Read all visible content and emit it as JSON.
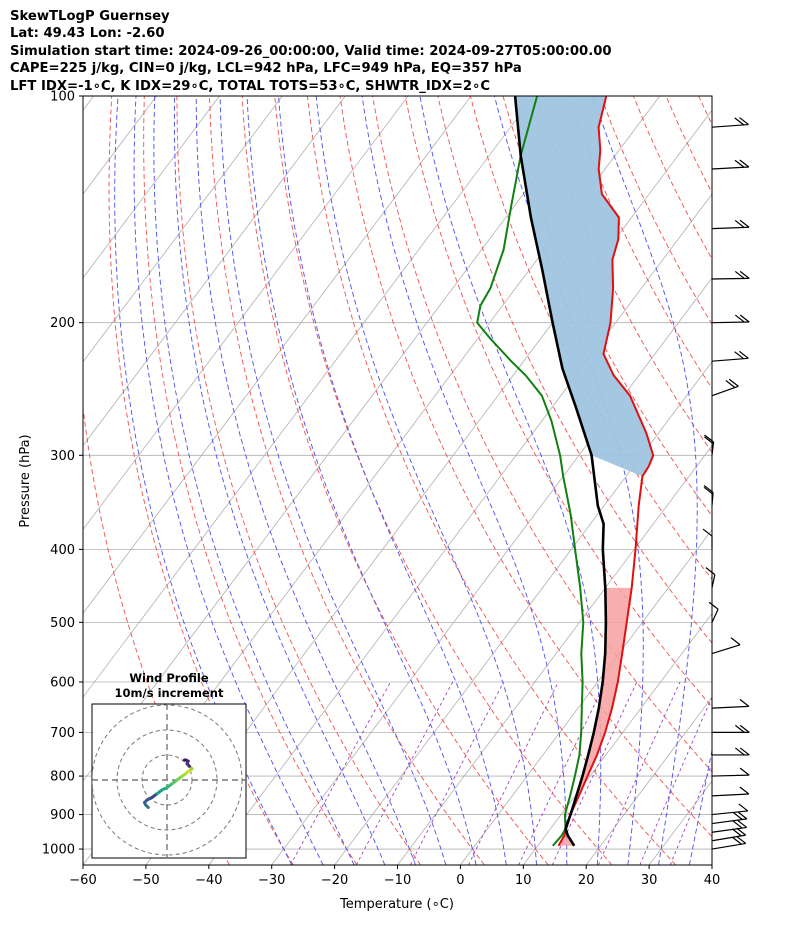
{
  "header": {
    "line1": "SkewTLogP Guernsey",
    "line2": "Lat: 49.43   Lon: -2.60",
    "line3": "Simulation start time: 2024-09-26_00:00:00, Valid time: 2024-09-27T05:00:00.00",
    "line4": "CAPE=225 j/kg, CIN=0 j/kg, LCL=942 hPa, LFC=949 hPa, EQ=357 hPa",
    "line5": "LFT IDX=-1∘C, K IDX=29∘C, TOTAL TOTS=53∘C, SHWTR_IDX=2∘C"
  },
  "hodograph": {
    "title": "Wind Profile",
    "subtitle": "10m/s increment"
  },
  "chart_data": {
    "type": "skewt",
    "xlabel": "Temperature (∘C)",
    "ylabel": "Pressure (hPa)",
    "xlim": [
      -60,
      40
    ],
    "ylim": [
      1050,
      100
    ],
    "x_ticks": [
      "−60",
      "−50",
      "−40",
      "−30",
      "−20",
      "−10",
      "0",
      "10",
      "20",
      "30",
      "40"
    ],
    "x_tick_values": [
      -60,
      -50,
      -40,
      -30,
      -20,
      -10,
      0,
      10,
      20,
      30,
      40
    ],
    "y_ticks": [
      "100",
      "200",
      "300",
      "400",
      "500",
      "600",
      "700",
      "800",
      "900",
      "1000"
    ],
    "y_tick_values": [
      100,
      200,
      300,
      400,
      500,
      600,
      700,
      800,
      900,
      1000
    ],
    "temperature_profile": [
      [
        13.3,
        990
      ],
      [
        13.0,
        960
      ],
      [
        12.5,
        940
      ],
      [
        11.5,
        900
      ],
      [
        10.6,
        850
      ],
      [
        9.6,
        800
      ],
      [
        8.6,
        750
      ],
      [
        7.2,
        700
      ],
      [
        5.4,
        650
      ],
      [
        3.2,
        600
      ],
      [
        0.5,
        550
      ],
      [
        -2.5,
        500
      ],
      [
        -5.8,
        450
      ],
      [
        -9.8,
        400
      ],
      [
        -14.5,
        350
      ],
      [
        -17.4,
        320
      ],
      [
        -17.6,
        310
      ],
      [
        -18.2,
        300
      ],
      [
        -22.0,
        280
      ],
      [
        -29.0,
        250
      ],
      [
        -34.0,
        235
      ],
      [
        -38.2,
        220
      ],
      [
        -40.8,
        200
      ],
      [
        -44.5,
        180
      ],
      [
        -48.0,
        165
      ],
      [
        -49.5,
        155
      ],
      [
        -52.0,
        145
      ],
      [
        -57.5,
        135
      ],
      [
        -61.0,
        125
      ],
      [
        -63.0,
        118
      ],
      [
        -66.0,
        110
      ],
      [
        -68.5,
        100
      ]
    ],
    "dewpoint_profile": [
      [
        12.4,
        990
      ],
      [
        12.6,
        960
      ],
      [
        12.4,
        940
      ],
      [
        10.6,
        900
      ],
      [
        9.2,
        850
      ],
      [
        7.6,
        800
      ],
      [
        5.8,
        750
      ],
      [
        3.4,
        700
      ],
      [
        0.6,
        650
      ],
      [
        -2.4,
        600
      ],
      [
        -6.0,
        550
      ],
      [
        -9.4,
        500
      ],
      [
        -14.0,
        450
      ],
      [
        -19.4,
        400
      ],
      [
        -24.2,
        360
      ],
      [
        -27.0,
        340
      ],
      [
        -30.0,
        320
      ],
      [
        -33.0,
        300
      ],
      [
        -38.5,
        270
      ],
      [
        -43.0,
        250
      ],
      [
        -48.0,
        235
      ],
      [
        -52.0,
        225
      ],
      [
        -58.0,
        210
      ],
      [
        -62.0,
        200
      ],
      [
        -63.5,
        190
      ],
      [
        -64.0,
        180
      ],
      [
        -66.5,
        160
      ],
      [
        -70.5,
        140
      ],
      [
        -75.0,
        120
      ],
      [
        -79.5,
        100
      ]
    ],
    "parcel_profile": [
      [
        15.8,
        990
      ],
      [
        13.6,
        960
      ],
      [
        12.4,
        940
      ],
      [
        11.5,
        900
      ],
      [
        10.2,
        850
      ],
      [
        8.8,
        800
      ],
      [
        7.2,
        750
      ],
      [
        5.4,
        700
      ],
      [
        3.3,
        650
      ],
      [
        0.8,
        600
      ],
      [
        -2.2,
        550
      ],
      [
        -5.8,
        500
      ],
      [
        -10.0,
        450
      ],
      [
        -15.0,
        400
      ],
      [
        -17.9,
        370
      ],
      [
        -21.0,
        350
      ],
      [
        -28.0,
        300
      ],
      [
        -36.0,
        260
      ],
      [
        -43.0,
        230
      ],
      [
        -50.0,
        200
      ],
      [
        -58.0,
        170
      ],
      [
        -66.0,
        145
      ],
      [
        -75.0,
        120
      ],
      [
        -83.0,
        100
      ]
    ],
    "cape_shading": "positive area between parcel and environment",
    "wind_barbs": [
      {
        "pressure": 1000,
        "u": -7.5,
        "v": 3.5
      },
      {
        "pressure": 975,
        "u": -8.5,
        "v": 4.0
      },
      {
        "pressure": 950,
        "u": -9.0,
        "v": 3.5
      },
      {
        "pressure": 925,
        "u": -8.0,
        "v": 3.0
      },
      {
        "pressure": 900,
        "u": -7.0,
        "v": 2.0
      },
      {
        "pressure": 850,
        "u": -7.0,
        "v": 1.0
      },
      {
        "pressure": 800,
        "u": -7.0,
        "v": 0.5
      },
      {
        "pressure": 750,
        "u": -8.5,
        "v": 0.0
      },
      {
        "pressure": 700,
        "u": -8.0,
        "v": 0.0
      },
      {
        "pressure": 650,
        "u": -7.5,
        "v": 1.0
      },
      {
        "pressure": 550,
        "u": -4.0,
        "v": 3.5
      },
      {
        "pressure": 500,
        "u": -1.0,
        "v": 6.0
      },
      {
        "pressure": 450,
        "u": -0.5,
        "v": 6.5
      },
      {
        "pressure": 400,
        "u": 0.0,
        "v": 7.0
      },
      {
        "pressure": 350,
        "u": -0.3,
        "v": 10.5
      },
      {
        "pressure": 300,
        "u": -0.5,
        "v": 12.0
      },
      {
        "pressure": 250,
        "u": -6.0,
        "v": 6.0
      },
      {
        "pressure": 225,
        "u": -9.0,
        "v": 2.0
      },
      {
        "pressure": 200,
        "u": -9.5,
        "v": 0.5
      },
      {
        "pressure": 175,
        "u": -10.0,
        "v": 0.5
      },
      {
        "pressure": 150,
        "u": -10.0,
        "v": 1.0
      },
      {
        "pressure": 125,
        "u": -10.0,
        "v": 1.5
      },
      {
        "pressure": 110,
        "u": -10.0,
        "v": 2.0
      }
    ],
    "hodograph_rings": [
      10,
      20,
      30
    ],
    "hodograph_points": [
      [
        -7.5,
        -11.0
      ],
      [
        -8.5,
        -10.0
      ],
      [
        -9.0,
        -9.0
      ],
      [
        -8.0,
        -8.0
      ],
      [
        -6.0,
        -7.0
      ],
      [
        -4.0,
        -5.5
      ],
      [
        -2.0,
        -4.0
      ],
      [
        0.0,
        -3.0
      ],
      [
        2.0,
        -1.5
      ],
      [
        4.0,
        0.0
      ],
      [
        6.0,
        1.5
      ],
      [
        7.5,
        2.5
      ],
      [
        8.5,
        3.5
      ],
      [
        9.5,
        4.0
      ],
      [
        10.0,
        4.5
      ],
      [
        9.0,
        5.5
      ],
      [
        8.0,
        6.5
      ],
      [
        8.5,
        7.5
      ],
      [
        7.5,
        8.0
      ],
      [
        7.0,
        8.0
      ]
    ]
  }
}
